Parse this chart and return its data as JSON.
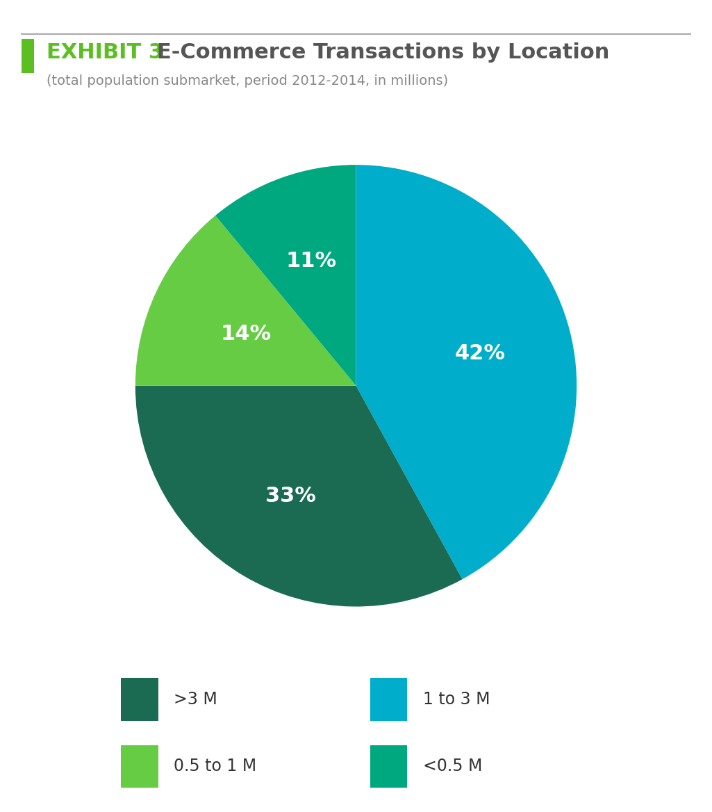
{
  "title_exhibit": "EXHIBIT 3",
  "title_main": "E-Commerce Transactions by Location",
  "subtitle": "(total population submarket, period 2012-2014, in millions)",
  "slices": [
    42,
    33,
    14,
    11
  ],
  "labels": [
    "42%",
    "33%",
    "14%",
    "11%"
  ],
  "colors": [
    "#00AECC",
    "#1A6B52",
    "#66CC44",
    "#00A880"
  ],
  "legend_labels": [
    ">3 M",
    "1 to 3 M",
    "0.5 to 1 M",
    "<0.5 M"
  ],
  "legend_colors": [
    "#1A6B52",
    "#00AECC",
    "#66CC44",
    "#00A880"
  ],
  "startangle": 90,
  "background_color": "#ffffff",
  "text_color_white": "#ffffff",
  "title_color_green": "#5BBF21",
  "title_color_gray": "#555555",
  "subtitle_color": "#888888",
  "accent_bar_color": "#5BBF21",
  "top_line_color": "#aaaaaa",
  "label_offsets": [
    0.58,
    0.58,
    0.55,
    0.6
  ],
  "label_fontsize": 22,
  "title_fontsize": 22,
  "subtitle_fontsize": 14,
  "legend_fontsize": 17
}
